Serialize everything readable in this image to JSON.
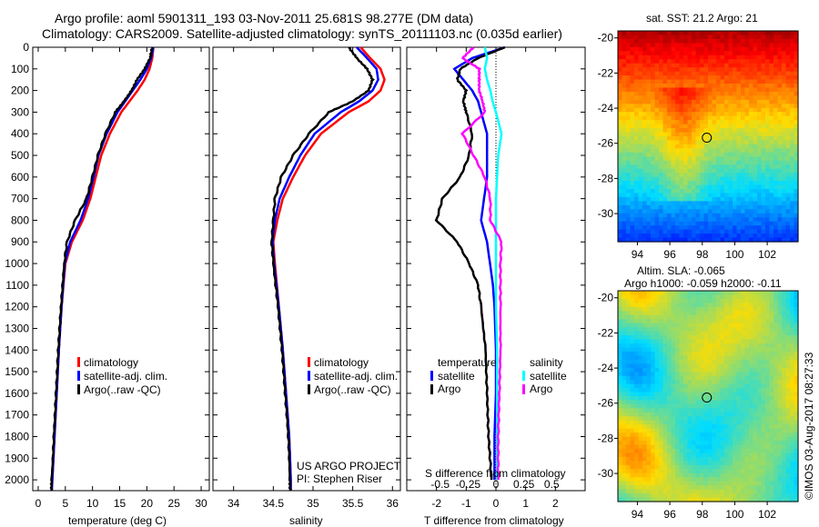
{
  "title": {
    "line1": "Argo profile: aoml 5901311_193 03-Nov-2011 25.681S 98.277E (DM data)",
    "line2": "Climatology: CARS2009. Satellite-adjusted climatology: synTS_20111103.nc (0.035d earlier)"
  },
  "side_stamp": "©IMOS 03-Aug-2017 08:27:33",
  "colors": {
    "climatology": "#ff0000",
    "satellite": "#0000ff",
    "argo": "#000000",
    "sal_satellite": "#00ffff",
    "sal_argo": "#ff00ff"
  },
  "chart_data": [
    {
      "type": "line",
      "id": "temperature",
      "xlabel": "temperature (deg C)",
      "ylabel": "depth",
      "xlim": [
        -1,
        31.5
      ],
      "ylim": [
        2050,
        0
      ],
      "xticks": [
        0,
        5,
        10,
        15,
        20,
        25,
        30
      ],
      "yticks": [
        0,
        100,
        200,
        300,
        400,
        500,
        600,
        700,
        800,
        900,
        1000,
        1100,
        1200,
        1300,
        1400,
        1500,
        1600,
        1700,
        1800,
        1900,
        2000
      ],
      "legend": [
        "climatology",
        "satellite-adj. clim.",
        "Argo(..raw -QC)"
      ],
      "depth": [
        0,
        50,
        100,
        150,
        200,
        250,
        300,
        400,
        500,
        600,
        700,
        800,
        900,
        1000,
        1200,
        1400,
        1600,
        1800,
        2000,
        2050
      ],
      "series": [
        {
          "name": "climatology",
          "color": "#ff0000",
          "values": [
            21.2,
            21.0,
            20.5,
            19.6,
            18.3,
            16.8,
            15.3,
            13.2,
            11.6,
            10.6,
            9.6,
            8.2,
            6.2,
            5.0,
            4.3,
            3.8,
            3.4,
            3.0,
            2.6,
            2.5
          ]
        },
        {
          "name": "satellite-adj. clim.",
          "color": "#0000ff",
          "values": [
            21.2,
            20.8,
            20.0,
            18.8,
            17.4,
            16.0,
            14.6,
            12.6,
            11.1,
            10.2,
            9.2,
            7.8,
            5.9,
            4.9,
            4.3,
            3.8,
            3.4,
            3.0,
            2.6,
            2.5
          ]
        },
        {
          "name": "Argo(..raw -QC)",
          "color": "#000000",
          "values": [
            21.0,
            20.6,
            19.6,
            18.2,
            17.2,
            15.8,
            14.2,
            12.4,
            11.0,
            10.0,
            8.9,
            6.8,
            5.3,
            4.8,
            4.2,
            3.7,
            3.3,
            2.9,
            2.5,
            2.4
          ]
        }
      ]
    },
    {
      "type": "line",
      "id": "salinity",
      "xlabel": "salinity",
      "xlim": [
        33.74,
        36.1
      ],
      "ylim": [
        2050,
        0
      ],
      "xticks": [
        34,
        34.5,
        35,
        35.5,
        36
      ],
      "legend": [
        "climatology",
        "satellite-adj. clim.",
        "Argo(..raw -QC)"
      ],
      "annotation": [
        "US ARGO PROJECT",
        "PI: Stephen Riser"
      ],
      "depth": [
        0,
        50,
        100,
        150,
        200,
        250,
        300,
        400,
        500,
        600,
        700,
        800,
        900,
        1000,
        1200,
        1400,
        1600,
        1800,
        2000,
        2050
      ],
      "series": [
        {
          "name": "climatology",
          "color": "#ff0000",
          "values": [
            35.6,
            35.72,
            35.85,
            35.9,
            35.85,
            35.7,
            35.45,
            35.1,
            34.9,
            34.75,
            34.62,
            34.55,
            34.5,
            34.52,
            34.57,
            34.62,
            34.66,
            34.7,
            34.72,
            34.72
          ]
        },
        {
          "name": "satellite-adj. clim.",
          "color": "#0000ff",
          "values": [
            35.55,
            35.68,
            35.8,
            35.82,
            35.75,
            35.58,
            35.35,
            35.02,
            34.84,
            34.7,
            34.58,
            34.52,
            34.49,
            34.51,
            34.57,
            34.62,
            34.66,
            34.7,
            34.72,
            34.72
          ]
        },
        {
          "name": "Argo(..raw -QC)",
          "color": "#000000",
          "values": [
            35.45,
            35.55,
            35.68,
            35.75,
            35.7,
            35.5,
            35.2,
            34.95,
            34.75,
            34.6,
            34.52,
            34.5,
            34.48,
            34.5,
            34.56,
            34.61,
            34.65,
            34.69,
            34.71,
            34.71
          ]
        }
      ]
    },
    {
      "type": "line",
      "id": "difference",
      "xlabel": "T difference from climatology",
      "x2label": "S difference from climatology",
      "xlim": [
        -3,
        3
      ],
      "x2lim": [
        -0.8,
        0.8
      ],
      "ylim": [
        2050,
        0
      ],
      "xticks": [
        -2,
        -1,
        0,
        1,
        2
      ],
      "x2ticks": [
        -0.5,
        -0.25,
        0,
        0.25,
        0.5
      ],
      "legend": {
        "temperature_title": "temperature",
        "salinity_title": "salinity",
        "t_sat": "satellite",
        "t_argo": "Argo",
        "s_sat": "satellite",
        "s_argo": "Argo"
      },
      "depth": [
        0,
        50,
        100,
        150,
        200,
        250,
        300,
        400,
        500,
        600,
        700,
        800,
        900,
        1000,
        1100,
        1200,
        1400,
        1600,
        1800,
        2000
      ],
      "series": [
        {
          "name": "T satellite",
          "axis": "T",
          "color": "#0000ff",
          "values": [
            0.3,
            -0.8,
            -1.4,
            -1.1,
            -0.8,
            -0.6,
            -0.5,
            -0.3,
            -0.3,
            -0.3,
            -0.4,
            -0.5,
            -0.3,
            -0.2,
            -0.1,
            -0.05,
            0,
            0,
            -0.05,
            -0.05
          ]
        },
        {
          "name": "T Argo",
          "axis": "T",
          "color": "#000000",
          "values": [
            0.3,
            -0.6,
            -1.2,
            -1.3,
            -1.0,
            -1.1,
            -1.0,
            -0.8,
            -0.9,
            -1.2,
            -1.8,
            -2.0,
            -1.3,
            -0.9,
            -0.6,
            -0.5,
            -0.35,
            -0.3,
            -0.25,
            -0.15
          ]
        },
        {
          "name": "S satellite",
          "axis": "S",
          "color": "#00ffff",
          "values": [
            -0.1,
            -0.08,
            -0.1,
            -0.08,
            -0.05,
            -0.03,
            0,
            0.05,
            0.02,
            0.01,
            0,
            0,
            0,
            0,
            0,
            0,
            0.01,
            0.01,
            0.01,
            0.01
          ]
        },
        {
          "name": "S Argo",
          "axis": "S",
          "color": "#ff00ff",
          "values": [
            -0.2,
            -0.3,
            -0.15,
            -0.15,
            -0.15,
            -0.12,
            -0.1,
            -0.3,
            -0.2,
            -0.1,
            -0.05,
            -0.05,
            0.05,
            0.04,
            0.04,
            0.04,
            0.04,
            0.03,
            0.02,
            0.02
          ]
        }
      ]
    },
    {
      "type": "heatmap",
      "id": "sst_map",
      "title": "sat. SST: 21.2 Argo: 21",
      "xticks": [
        94,
        96,
        98,
        100,
        102
      ],
      "yticks": [
        -20,
        -22,
        -24,
        -26,
        -28,
        -30
      ],
      "xlim": [
        92.8,
        103.9
      ],
      "ylim": [
        -31.6,
        -19.6
      ],
      "marker": {
        "lon": 98.28,
        "lat": -25.68
      }
    },
    {
      "type": "heatmap",
      "id": "sla_map",
      "title": [
        "Altim. SLA: -0.065",
        "Argo h1000: -0.059 h2000: -0.11"
      ],
      "xticks": [
        94,
        96,
        98,
        100,
        102
      ],
      "yticks": [
        -20,
        -22,
        -24,
        -26,
        -28,
        -30
      ],
      "xlim": [
        92.8,
        103.9
      ],
      "ylim": [
        -31.6,
        -19.6
      ],
      "marker": {
        "lon": 98.28,
        "lat": -25.68
      }
    }
  ]
}
